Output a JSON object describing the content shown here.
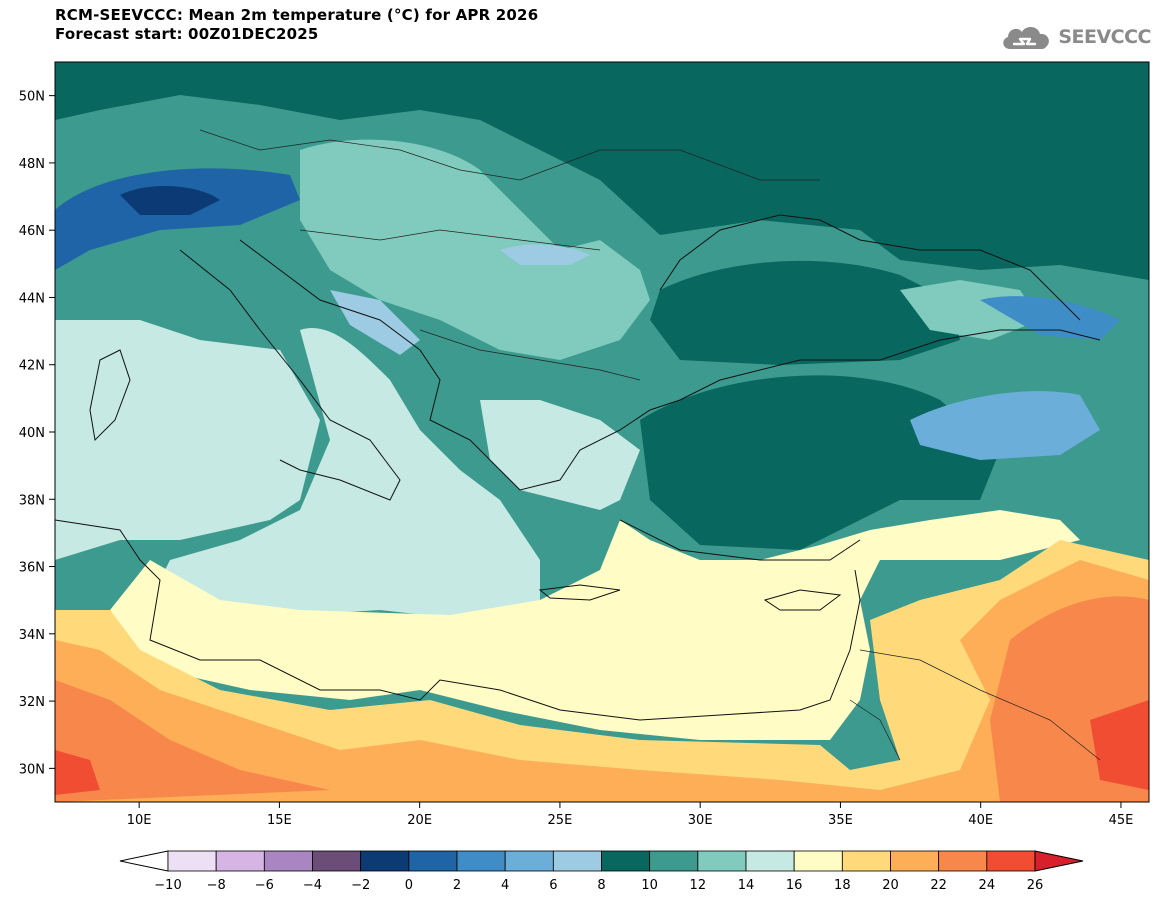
{
  "header": {
    "title_line1": "RCM-SEEVCCC: Mean 2m temperature (°C) for APR 2026",
    "title_line2": "Forecast start: 00Z01DEC2025"
  },
  "logo": {
    "text": "SEEVCCC",
    "icon": "cloud-icon",
    "color": "#8a8a8a"
  },
  "map": {
    "lon_range": [
      7,
      46
    ],
    "lat_range": [
      29,
      51
    ],
    "lat_ticks": [
      "30N",
      "32N",
      "34N",
      "36N",
      "38N",
      "40N",
      "42N",
      "44N",
      "46N",
      "48N",
      "50N"
    ],
    "lon_ticks": [
      "10E",
      "15E",
      "20E",
      "25E",
      "30E",
      "35E",
      "40E",
      "45E"
    ]
  },
  "colorbar": {
    "labels": [
      "−10",
      "−8",
      "−6",
      "−4",
      "−2",
      "0",
      "2",
      "4",
      "6",
      "8",
      "10",
      "12",
      "14",
      "16",
      "18",
      "20",
      "22",
      "24",
      "26"
    ],
    "colors": [
      "#ffffff",
      "#ede0f5",
      "#d6b4e3",
      "#a986c2",
      "#6b4d78",
      "#0b3a75",
      "#1f64a6",
      "#3f8dc7",
      "#6aaed9",
      "#9ccbe3",
      "#08675e",
      "#3c9a8f",
      "#80cbbd",
      "#c6e9e3",
      "#fffcc6",
      "#ffd97a",
      "#fdae57",
      "#f7874a",
      "#f04d32",
      "#d7202b"
    ]
  }
}
